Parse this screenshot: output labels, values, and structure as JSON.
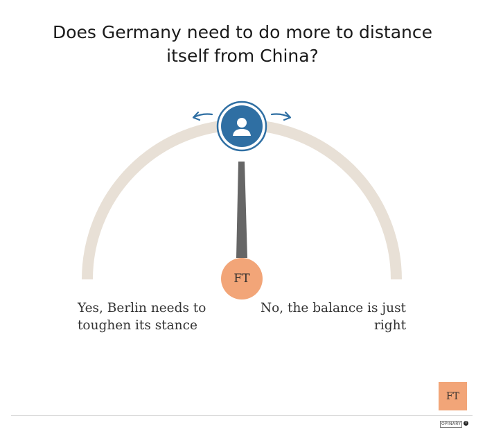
{
  "question": {
    "title_line1": "Does Germany need to do more to distance",
    "title_line2": "itself from China?"
  },
  "dial": {
    "arc_color": "#e8e0d6",
    "needle_color": "#666666",
    "knob_color": "#2f6fa3",
    "arrow_color": "#2f6fa3",
    "needle_position": 0.5,
    "knob_icon": "user-icon",
    "left_arrow_icon": "arrow-left-icon",
    "right_arrow_icon": "arrow-right-icon"
  },
  "options": {
    "left_line1": "Yes, Berlin needs to",
    "left_line2": "toughen its stance",
    "right_line1": "No, the balance is just",
    "right_line2": "right"
  },
  "hub": {
    "label": "FT",
    "color": "#f2a578"
  },
  "footer": {
    "publisher_logo": "FT",
    "brand": "OPINARY",
    "info_icon": "info-icon"
  }
}
